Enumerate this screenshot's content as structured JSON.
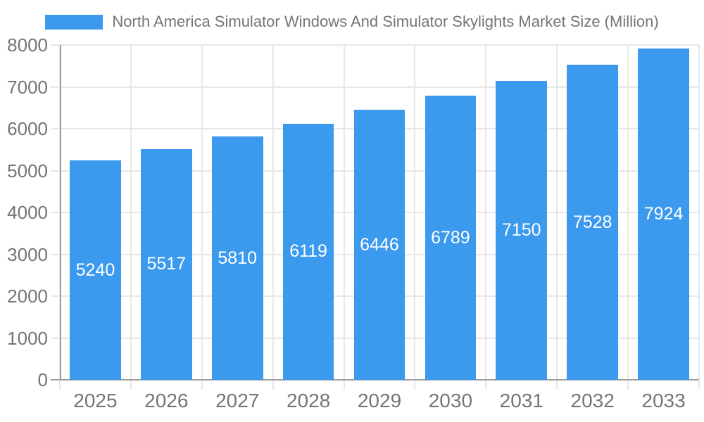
{
  "chart_data": {
    "type": "bar",
    "legend_label": "North America Simulator Windows And Simulator Skylights Market Size (Million)",
    "categories": [
      "2025",
      "2026",
      "2027",
      "2028",
      "2029",
      "2030",
      "2031",
      "2032",
      "2033"
    ],
    "values": [
      5240,
      5517,
      5810,
      6119,
      6446,
      6789,
      7150,
      7528,
      7924
    ],
    "value_labels": [
      "5240",
      "5517",
      "5810",
      "6119",
      "6446",
      "6789",
      "7150",
      "7528",
      "7924"
    ],
    "ylim": [
      0,
      8000
    ],
    "yticks": [
      0,
      1000,
      2000,
      3000,
      4000,
      5000,
      6000,
      7000,
      8000
    ],
    "ytick_labels": [
      "0",
      "1000",
      "2000",
      "3000",
      "4000",
      "5000",
      "6000",
      "7000",
      "8000"
    ],
    "grid": true,
    "legend_position": "top",
    "colors": {
      "bar": "#3B99EE",
      "axis_line": "#9E9E9E",
      "gridline": "#E7E7E7",
      "tick_label": "#757575",
      "legend_label": "#757575",
      "value_label": "#FFFFFF",
      "background": "#FFFFFF"
    }
  }
}
